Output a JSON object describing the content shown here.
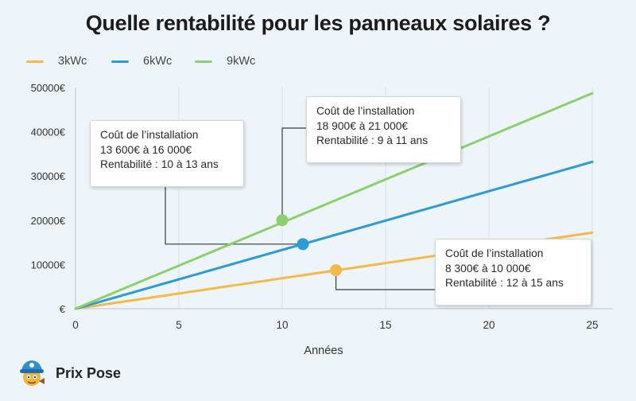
{
  "chart_data": {
    "type": "line",
    "title": "Quelle rentabilité pour les panneaux solaires ?",
    "xlabel": "Années",
    "ylabel": "",
    "xlim": [
      0,
      26
    ],
    "ylim": [
      0,
      50000
    ],
    "x_ticks": [
      0,
      5,
      10,
      15,
      20,
      25
    ],
    "y_ticks": [
      0,
      10000,
      20000,
      30000,
      40000,
      50000
    ],
    "y_tick_labels": [
      "€",
      "10000€",
      "20000€",
      "30000€",
      "40000€",
      "50000€"
    ],
    "grid": "vertical",
    "legend_position": "top-left",
    "series": [
      {
        "name": "3kWc",
        "color": "#f5b849",
        "x": [
          0,
          25
        ],
        "y": [
          0,
          17200
        ]
      },
      {
        "name": "6kWc",
        "color": "#2e9ad6",
        "x": [
          0,
          25
        ],
        "y": [
          0,
          33200
        ]
      },
      {
        "name": "9kWc",
        "color": "#8bd06b",
        "x": [
          0,
          25
        ],
        "y": [
          0,
          48700
        ]
      }
    ],
    "markers": [
      {
        "series": "3kWc",
        "x": 12.6,
        "y": 8700
      },
      {
        "series": "6kWc",
        "x": 11.0,
        "y": 14600
      },
      {
        "series": "9kWc",
        "x": 10.0,
        "y": 20000
      }
    ],
    "annotations": [
      {
        "series": "9kWc",
        "lines": [
          "Coût de l’installation",
          "13 600€ à 16 000€",
          "Rentabilité : 10 à 13 ans"
        ]
      },
      {
        "series": "6kWc",
        "lines": [
          "Coût de l’installation",
          "18 900€ à 21 000€",
          "Rentabilité : 9 à 11 ans"
        ]
      },
      {
        "series": "3kWc",
        "lines": [
          "Coût de l’installation",
          "8 300€ à 10 000€",
          "Rentabilité : 12 à 15 ans"
        ]
      }
    ]
  },
  "brand": {
    "name": "Prix Pose"
  }
}
